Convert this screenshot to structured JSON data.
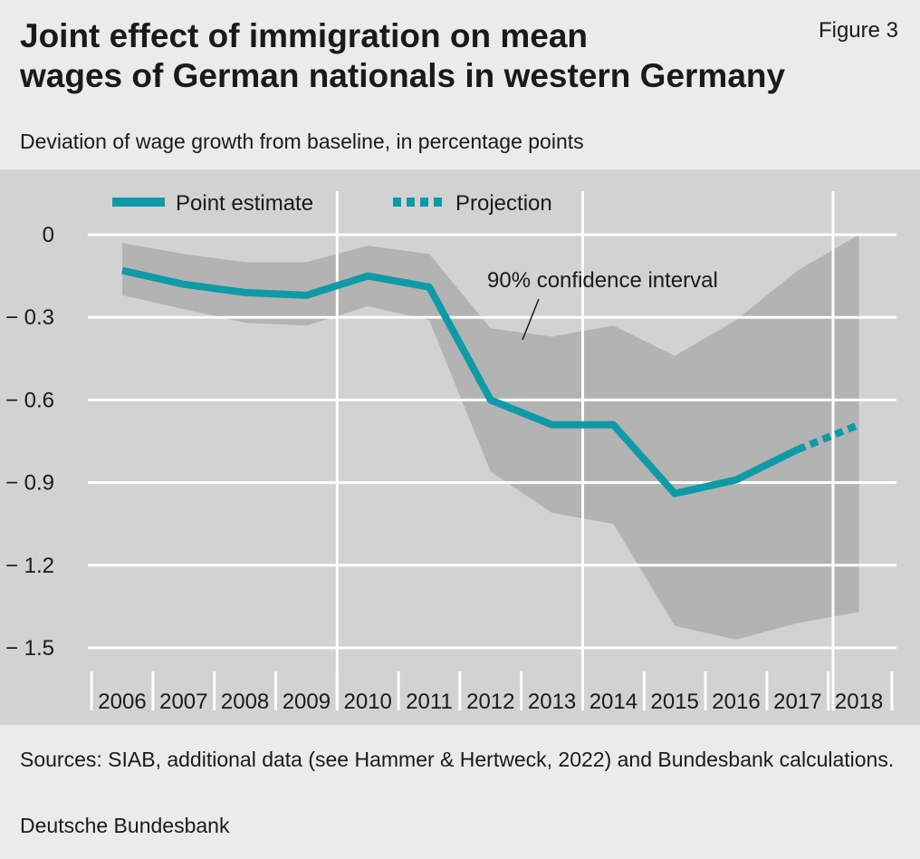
{
  "header": {
    "title": "Joint effect of immigration on mean\nwages of German nationals in western Germany",
    "figure_label": "Figure 3",
    "subtitle": "Deviation of wage growth from baseline, in percentage points"
  },
  "footer": {
    "sources": "Sources: SIAB, additional data (see Hammer & Hertweck, 2022) and Bundesbank calculations.",
    "publisher": "Deutsche Bundesbank"
  },
  "colors": {
    "line": "#0e9aa7",
    "band": "#b3b3b3",
    "panel": "#d2d2d2",
    "grid": "#ffffff"
  },
  "chart_data": {
    "type": "line",
    "title": "Joint effect of immigration on mean wages of German nationals in western Germany",
    "ylabel": "Deviation of wage growth from baseline, in percentage points",
    "xlabel": "",
    "categories": [
      "2006",
      "2007",
      "2008",
      "2009",
      "2010",
      "2011",
      "2012",
      "2013",
      "2014",
      "2015",
      "2016",
      "2017",
      "2018"
    ],
    "ylim": [
      -1.5,
      0
    ],
    "yticks": [
      0,
      -0.3,
      -0.6,
      -0.9,
      -1.2,
      -1.5
    ],
    "ytick_labels": [
      "0",
      "− 0.3",
      "− 0.6",
      "− 0.9",
      "− 1.2",
      "− 1.5"
    ],
    "grid": true,
    "legend_position": "top-left",
    "series": [
      {
        "name": "Point estimate",
        "style": "solid",
        "x": [
          "2006",
          "2007",
          "2008",
          "2009",
          "2010",
          "2011",
          "2012",
          "2013",
          "2014",
          "2015",
          "2016",
          "2017"
        ],
        "values": [
          -0.13,
          -0.18,
          -0.21,
          -0.22,
          -0.15,
          -0.19,
          -0.6,
          -0.69,
          -0.69,
          -0.94,
          -0.89,
          -0.78
        ]
      },
      {
        "name": "Projection",
        "style": "dashed",
        "x": [
          "2017",
          "2018"
        ],
        "values": [
          -0.78,
          -0.69
        ]
      }
    ],
    "band": {
      "name": "90% confidence interval",
      "upper": [
        -0.03,
        -0.07,
        -0.1,
        -0.1,
        -0.04,
        -0.07,
        -0.34,
        -0.37,
        -0.33,
        -0.44,
        -0.31,
        -0.13,
        0.0
      ],
      "lower": [
        -0.22,
        -0.27,
        -0.32,
        -0.33,
        -0.26,
        -0.31,
        -0.86,
        -1.01,
        -1.05,
        -1.42,
        -1.47,
        -1.41,
        -1.37
      ]
    },
    "annotations": [
      "90% confidence interval"
    ]
  }
}
